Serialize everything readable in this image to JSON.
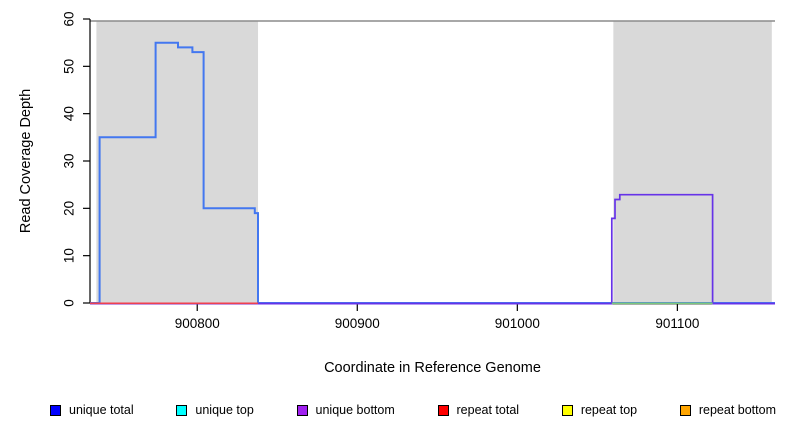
{
  "chart_data": {
    "type": "line",
    "subtype": "step-coverage-plot",
    "title": "",
    "xlabel": "Coordinate in Reference Genome",
    "ylabel": "Read Coverage Depth",
    "xlim": [
      900733,
      901161
    ],
    "ylim": [
      0,
      60
    ],
    "x_ticks": [
      900800,
      900900,
      901000,
      901100
    ],
    "y_ticks": [
      0,
      10,
      20,
      30,
      40,
      50,
      60
    ],
    "grid": false,
    "shaded_regions": [
      {
        "name": "repeat-region-left",
        "x0": 900737,
        "x1": 900838,
        "color": "#d9d9d9"
      },
      {
        "name": "repeat-region-right",
        "x0": 901060,
        "x1": 901159,
        "color": "#d9d9d9"
      }
    ],
    "frame": {
      "top_line_color": "#8c8c8c",
      "axis_color": "#000000"
    },
    "series": [
      {
        "name": "unique total coverage",
        "color": "#4377F0",
        "width": 2.0,
        "dy": 0,
        "points": [
          [
            900733,
            0
          ],
          [
            900739,
            0
          ],
          [
            900739,
            35
          ],
          [
            900774,
            35
          ],
          [
            900774,
            55
          ],
          [
            900788,
            55
          ],
          [
            900788,
            54
          ],
          [
            900797,
            54
          ],
          [
            900797,
            53
          ],
          [
            900804,
            53
          ],
          [
            900804,
            20
          ],
          [
            900836,
            20
          ],
          [
            900836,
            19
          ],
          [
            900838,
            19
          ],
          [
            900838,
            0
          ],
          [
            901161,
            0
          ]
        ]
      },
      {
        "name": "unique bottom coverage",
        "color": "#6633E8",
        "width": 1.7,
        "dy": 0.6,
        "points": [
          [
            900733,
            0
          ],
          [
            901059,
            0
          ],
          [
            901059,
            18
          ],
          [
            901061,
            18
          ],
          [
            901061,
            22
          ],
          [
            901064,
            22
          ],
          [
            901064,
            23
          ],
          [
            901122,
            23
          ],
          [
            901122,
            0
          ],
          [
            901161,
            0
          ]
        ]
      },
      {
        "name": "repeat total baseline",
        "color": "#EF4050",
        "width": 1.6,
        "dy": 0.3,
        "points": [
          [
            900733,
            0
          ],
          [
            900838,
            0
          ]
        ]
      },
      {
        "name": "repeat region baseline green",
        "color": "#7CC87C",
        "width": 1.6,
        "dy": 0.3,
        "points": [
          [
            901059,
            0
          ],
          [
            901122,
            0
          ]
        ]
      }
    ],
    "legend_position": "bottom"
  },
  "legend": {
    "items": [
      {
        "label": "unique total",
        "color": "#0000FF"
      },
      {
        "label": "unique top",
        "color": "#00FFFF"
      },
      {
        "label": "unique bottom",
        "color": "#A020F0"
      },
      {
        "label": "repeat total",
        "color": "#FF0000"
      },
      {
        "label": "repeat top",
        "color": "#FFFF00"
      },
      {
        "label": "repeat bottom",
        "color": "#FFA500"
      }
    ]
  }
}
